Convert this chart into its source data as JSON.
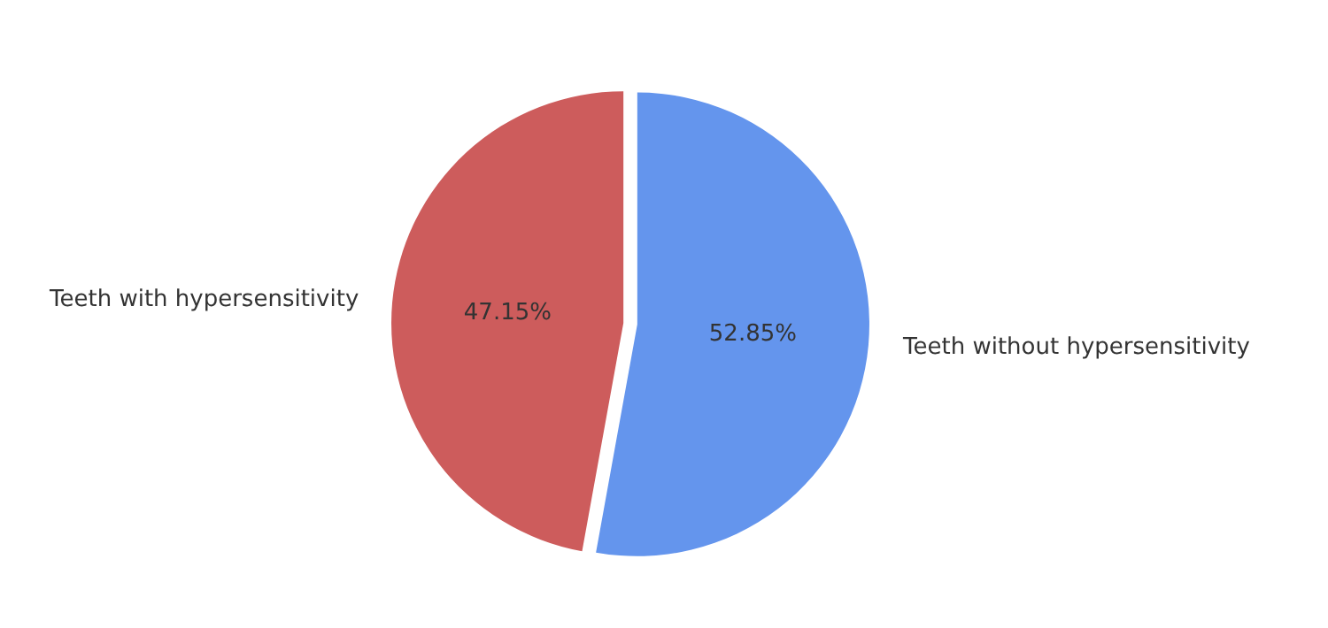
{
  "chart_data": {
    "type": "pie",
    "categories": [
      "Teeth without hypersensitivity",
      "Teeth with hypersensitivity"
    ],
    "values": [
      52.85,
      47.15
    ],
    "colors": [
      "#6495ed",
      "#cd5c5c"
    ],
    "value_labels": [
      "52.85%",
      "47.15%"
    ],
    "legend": false
  }
}
